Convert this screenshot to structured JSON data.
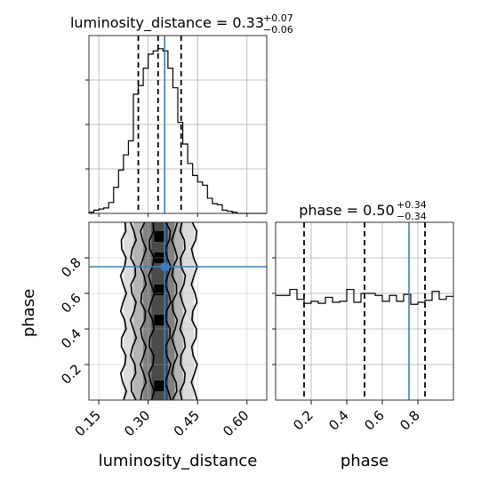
{
  "chart_data": [
    {
      "type": "histogram",
      "panel": "luminosity_distance-marginal",
      "title": {
        "parameter": "luminosity_distance",
        "value": "0.33",
        "plus": "+0.07",
        "minus": "−0.06"
      },
      "xlim": [
        0.12,
        0.66
      ],
      "bin_edges": [
        0.12,
        0.135,
        0.15,
        0.165,
        0.18,
        0.195,
        0.21,
        0.225,
        0.24,
        0.255,
        0.27,
        0.285,
        0.3,
        0.315,
        0.33,
        0.345,
        0.36,
        0.375,
        0.39,
        0.405,
        0.42,
        0.435,
        0.45,
        0.465,
        0.48,
        0.495,
        0.51,
        0.525,
        0.54,
        0.555,
        0.57,
        0.585,
        0.6,
        0.615,
        0.63,
        0.645,
        0.66
      ],
      "counts": [
        1,
        3,
        4,
        5,
        10,
        24,
        40,
        54,
        67,
        110,
        118,
        134,
        147,
        150,
        152,
        150,
        134,
        116,
        84,
        64,
        46,
        35,
        29,
        26,
        14,
        9,
        8,
        3,
        2,
        1,
        0,
        0,
        0,
        0,
        0,
        0
      ],
      "quantiles": [
        0.27,
        0.33,
        0.4
      ],
      "truth": 0.35
    },
    {
      "type": "scatter-contour",
      "panel": "luminosity_distance-vs-phase",
      "xlabel": "luminosity_distance",
      "ylabel": "phase",
      "xlim": [
        0.12,
        0.66
      ],
      "ylim": [
        0.0,
        1.0
      ],
      "x_ticks": [
        "0.15",
        "0.30",
        "0.45",
        "0.60"
      ],
      "x_tick_values": [
        0.15,
        0.3,
        0.45,
        0.6
      ],
      "y_ticks": [
        "0.2",
        "0.4",
        "0.6",
        "0.8"
      ],
      "y_tick_values": [
        0.2,
        0.4,
        0.6,
        0.8
      ],
      "truth": [
        0.35,
        0.75
      ],
      "contour_levels": [
        {
          "left": 0.225,
          "right": 0.44
        },
        {
          "left": 0.255,
          "right": 0.405
        },
        {
          "left": 0.285,
          "right": 0.38
        },
        {
          "left": 0.31,
          "right": 0.36
        }
      ]
    },
    {
      "type": "histogram",
      "panel": "phase-marginal",
      "title": {
        "parameter": "phase",
        "value": "0.50",
        "plus": "+0.34",
        "minus": "−0.34"
      },
      "xlabel": "phase",
      "xlim": [
        0.0,
        1.0
      ],
      "x_ticks": [
        "0.2",
        "0.4",
        "0.6",
        "0.8"
      ],
      "x_tick_values": [
        0.2,
        0.4,
        0.6,
        0.8
      ],
      "bin_edges": [
        0.0,
        0.04,
        0.08,
        0.12,
        0.16,
        0.2,
        0.24,
        0.28,
        0.32,
        0.36,
        0.4,
        0.44,
        0.48,
        0.52,
        0.56,
        0.6,
        0.64,
        0.68,
        0.72,
        0.76,
        0.8,
        0.84,
        0.88,
        0.92,
        0.96,
        1.0
      ],
      "counts": [
        106,
        106,
        112,
        102,
        98,
        100,
        98,
        104,
        99,
        100,
        112,
        99,
        108,
        108,
        106,
        100,
        106,
        100,
        107,
        97,
        99,
        101,
        110,
        102,
        105
      ],
      "quantiles": [
        0.16,
        0.5,
        0.84
      ],
      "truth": 0.75
    }
  ]
}
